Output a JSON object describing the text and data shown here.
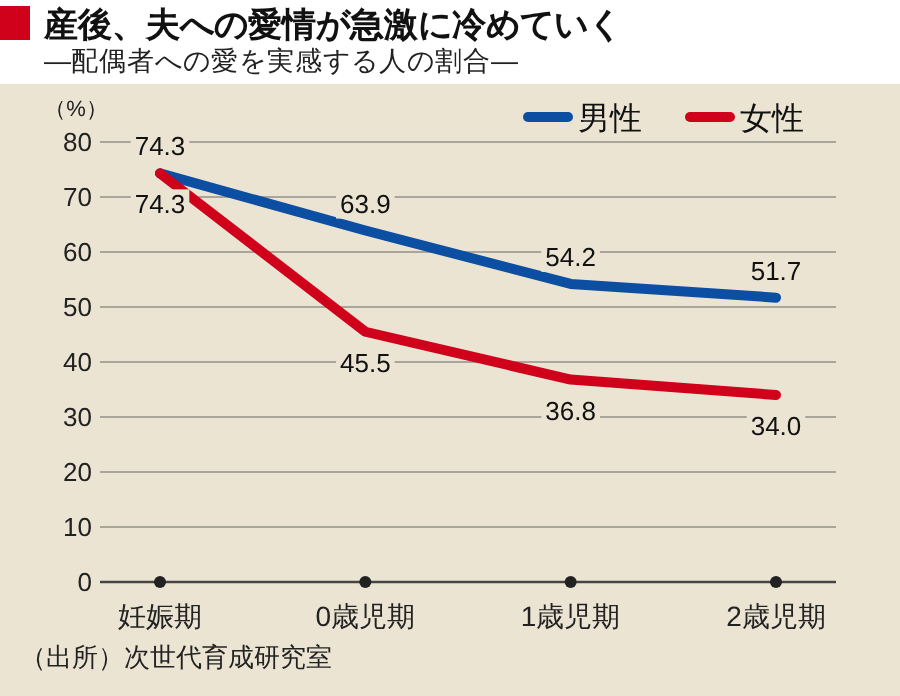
{
  "chart_data": {
    "type": "line",
    "title": "産後、夫への愛情が急激に冷めていく",
    "subtitle": "—配偶者への愛を実感する人の割合—",
    "ylabel": "（%）",
    "categories": [
      "妊娠期",
      "0歳児期",
      "1歳児期",
      "2歳児期"
    ],
    "series": [
      {
        "name": "男性",
        "color": "#0b4ea2",
        "values": [
          74.3,
          63.9,
          54.2,
          51.7
        ],
        "value_labels": [
          "74.3",
          "63.9",
          "54.2",
          "51.7"
        ]
      },
      {
        "name": "女性",
        "color": "#d0021b",
        "values": [
          74.3,
          45.5,
          36.8,
          34.0
        ],
        "value_labels": [
          "74.3",
          "45.5",
          "36.8",
          "34.0"
        ]
      }
    ],
    "ylim": [
      0,
      80
    ],
    "yticks": [
      0,
      10,
      20,
      30,
      40,
      50,
      60,
      70,
      80
    ],
    "grid": "y",
    "legend": "top right",
    "annotations": [
      "（出所）次世代育成研究室"
    ]
  }
}
